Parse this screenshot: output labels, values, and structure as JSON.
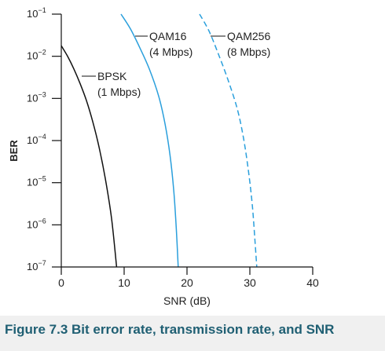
{
  "caption": "Figure 7.3 Bit error rate, transmission rate, and SNR",
  "colors": {
    "bpsk": "#111111",
    "qam": "#2a9fdc",
    "axis": "#111111",
    "caption": "#1f5f73"
  },
  "chart_data": {
    "type": "line",
    "title": "",
    "xlabel": "SNR (dB)",
    "ylabel": "BER",
    "xlim": [
      0,
      40
    ],
    "ylim_exponent": [
      -7,
      -1
    ],
    "yscale": "log",
    "x_ticks": [
      "0",
      "10",
      "20",
      "30",
      "40"
    ],
    "y_ticks": [
      {
        "base": "10",
        "exp": "−1"
      },
      {
        "base": "10",
        "exp": "−2"
      },
      {
        "base": "10",
        "exp": "−3"
      },
      {
        "base": "10",
        "exp": "−4"
      },
      {
        "base": "10",
        "exp": "−5"
      },
      {
        "base": "10",
        "exp": "−6"
      },
      {
        "base": "10",
        "exp": "−7"
      }
    ],
    "grid": false,
    "series": [
      {
        "label_lines": [
          "BPSK",
          "(1 Mbps)"
        ],
        "style": "solid",
        "color_key": "bpsk",
        "points": [
          [
            0,
            -1.75
          ],
          [
            1,
            -2.0
          ],
          [
            2,
            -2.3
          ],
          [
            3,
            -2.65
          ],
          [
            4,
            -3.05
          ],
          [
            5,
            -3.55
          ],
          [
            6,
            -4.15
          ],
          [
            7,
            -4.9
          ],
          [
            8,
            -5.85
          ],
          [
            8.8,
            -7.0
          ]
        ]
      },
      {
        "label_lines": [
          "QAM16",
          "(4 Mbps)"
        ],
        "style": "solid",
        "color_key": "qam",
        "points": [
          [
            9.5,
            -1.0
          ],
          [
            11,
            -1.35
          ],
          [
            12.5,
            -1.8
          ],
          [
            14,
            -2.3
          ],
          [
            15.5,
            -2.95
          ],
          [
            16.5,
            -3.6
          ],
          [
            17.3,
            -4.35
          ],
          [
            17.9,
            -5.2
          ],
          [
            18.3,
            -6.1
          ],
          [
            18.6,
            -7.0
          ]
        ]
      },
      {
        "label_lines": [
          "QAM256",
          "(8 Mbps)"
        ],
        "style": "dashed",
        "color_key": "qam",
        "points": [
          [
            22,
            -1.0
          ],
          [
            23.5,
            -1.4
          ],
          [
            25,
            -1.95
          ],
          [
            26.5,
            -2.55
          ],
          [
            28,
            -3.25
          ],
          [
            29,
            -3.95
          ],
          [
            29.8,
            -4.75
          ],
          [
            30.4,
            -5.55
          ],
          [
            30.8,
            -6.35
          ],
          [
            31.1,
            -7.0
          ]
        ]
      }
    ]
  }
}
